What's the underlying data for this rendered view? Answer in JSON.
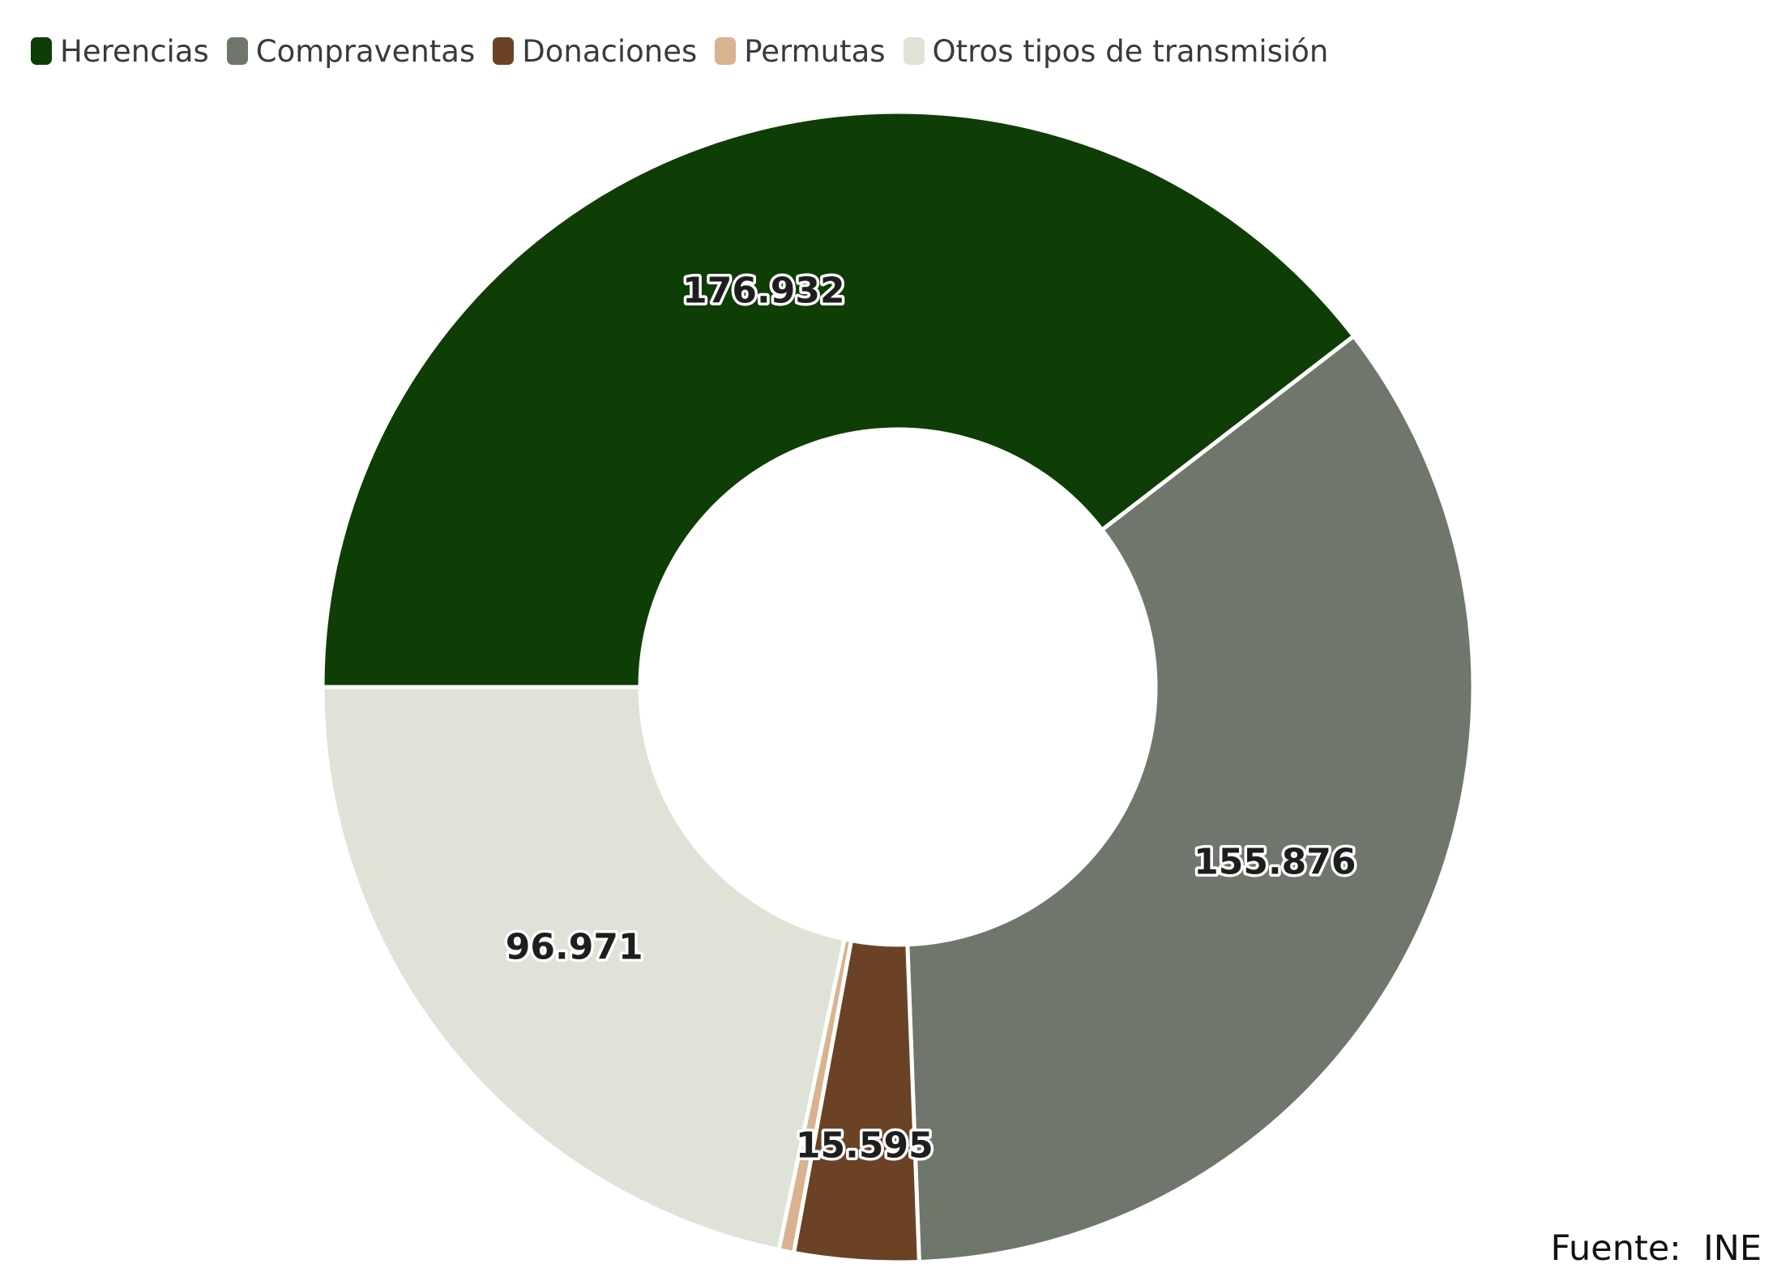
{
  "chart_data": {
    "type": "pie",
    "donut": true,
    "title": "",
    "legend_position": "top-left",
    "slices": [
      {
        "name": "Herencias",
        "value": 176932,
        "label": "176.932",
        "color": "#0e3d05"
      },
      {
        "name": "Compraventas",
        "value": 155876,
        "label": "155.876",
        "color": "#6f766b"
      },
      {
        "name": "Donaciones",
        "value": 15595,
        "label": "15.595",
        "color": "#6b4226"
      },
      {
        "name": "Permutas",
        "value": 1900,
        "label": "",
        "color": "#d9b38f"
      },
      {
        "name": "Otros tipos de transmisión",
        "value": 96971,
        "label": "96.971",
        "color": "#dfe2d7"
      }
    ]
  },
  "source": {
    "text": "Fuente:  INE"
  }
}
